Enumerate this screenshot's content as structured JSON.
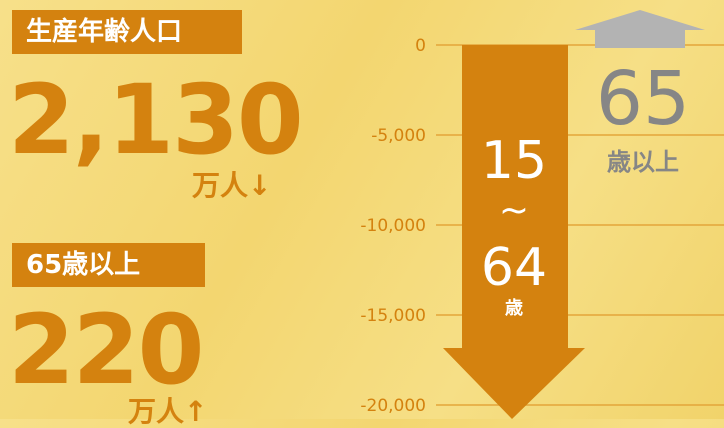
{
  "stats": [
    {
      "label": "生産年齢人口",
      "value": "2,130",
      "unit": "万人↓"
    },
    {
      "label": "65歳以上",
      "value": "220",
      "unit": "万人↑"
    }
  ],
  "axis": {
    "ticks": [
      "0",
      "-5,000",
      "-10,000",
      "-15,000",
      "-20,000"
    ]
  },
  "down_arrow": {
    "from": "15",
    "sep": "~",
    "to": "64",
    "unit": "歳"
  },
  "up_arrow": {
    "age": "65",
    "unit": "歳以上"
  }
}
